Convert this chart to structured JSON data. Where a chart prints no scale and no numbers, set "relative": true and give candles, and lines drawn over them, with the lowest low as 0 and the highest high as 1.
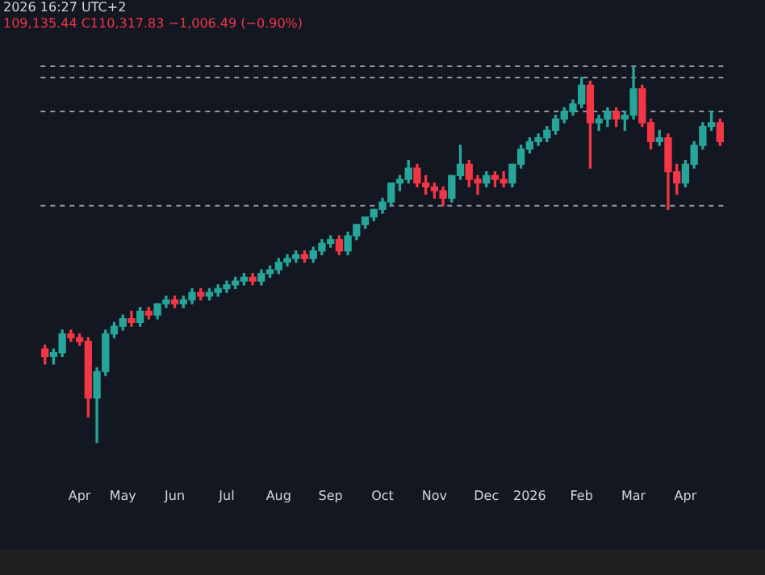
{
  "chart_data": {
    "type": "candlestick",
    "relative": true,
    "legend": false,
    "annotations": [
      "2026 16:27 UTC+2",
      "109,135.44 C110,317.83 −1,006.49 (−0.90%)"
    ],
    "categories": [
      null,
      null,
      null,
      null,
      "Apr",
      null,
      null,
      null,
      null,
      "May",
      null,
      null,
      null,
      null,
      null,
      "Jun",
      null,
      null,
      null,
      null,
      null,
      "Jul",
      null,
      null,
      null,
      null,
      null,
      "Aug",
      null,
      null,
      null,
      null,
      null,
      "Sep",
      null,
      null,
      null,
      null,
      null,
      "Oct",
      null,
      null,
      null,
      null,
      null,
      "Nov",
      null,
      null,
      null,
      null,
      null,
      "Dec",
      null,
      null,
      null,
      null,
      "2026",
      null,
      null,
      null,
      null,
      null,
      "Feb",
      null,
      null,
      null,
      null,
      null,
      "Mar",
      null,
      null,
      null,
      null,
      null,
      "Apr",
      null,
      null,
      null,
      null
    ],
    "ref_lines": [
      {
        "axis": "y",
        "value": 1.0,
        "color": "#9598a1",
        "line_style": "dashed"
      },
      {
        "axis": "y",
        "value": 0.97,
        "color": "#9598a1",
        "line_style": "dashed"
      },
      {
        "axis": "y",
        "value": 0.88,
        "color": "#9598a1",
        "line_style": "dashed"
      },
      {
        "axis": "y",
        "value": 0.63,
        "color": "#9598a1",
        "line_style": "dashed"
      }
    ],
    "series": [
      {
        "ohlc": [
          [
            0.25,
            0.26,
            0.21,
            0.23
          ],
          [
            0.23,
            0.25,
            0.21,
            0.24
          ],
          [
            0.24,
            0.3,
            0.23,
            0.29
          ],
          [
            0.29,
            0.3,
            0.27,
            0.28
          ],
          [
            0.28,
            0.29,
            0.26,
            0.27
          ],
          [
            0.27,
            0.28,
            0.07,
            0.12
          ],
          [
            0.12,
            0.2,
            0,
            0.19
          ],
          [
            0.19,
            0.3,
            0.18,
            0.29
          ],
          [
            0.29,
            0.32,
            0.28,
            0.31
          ],
          [
            0.31,
            0.34,
            0.3,
            0.33
          ],
          [
            0.33,
            0.35,
            0.31,
            0.32
          ],
          [
            0.32,
            0.36,
            0.31,
            0.35
          ],
          [
            0.35,
            0.36,
            0.33,
            0.34
          ],
          [
            0.34,
            0.37,
            0.33,
            0.37
          ],
          [
            0.37,
            0.39,
            0.36,
            0.38
          ],
          [
            0.38,
            0.39,
            0.36,
            0.37
          ],
          [
            0.37,
            0.39,
            0.36,
            0.38
          ],
          [
            0.38,
            0.41,
            0.37,
            0.4
          ],
          [
            0.4,
            0.41,
            0.38,
            0.39
          ],
          [
            0.39,
            0.41,
            0.38,
            0.4
          ],
          [
            0.4,
            0.42,
            0.39,
            0.41
          ],
          [
            0.41,
            0.43,
            0.4,
            0.42
          ],
          [
            0.42,
            0.44,
            0.41,
            0.43
          ],
          [
            0.43,
            0.45,
            0.42,
            0.44
          ],
          [
            0.44,
            0.45,
            0.42,
            0.43
          ],
          [
            0.43,
            0.46,
            0.42,
            0.45
          ],
          [
            0.45,
            0.47,
            0.44,
            0.46
          ],
          [
            0.46,
            0.49,
            0.45,
            0.48
          ],
          [
            0.48,
            0.5,
            0.47,
            0.49
          ],
          [
            0.49,
            0.51,
            0.48,
            0.5
          ],
          [
            0.5,
            0.51,
            0.48,
            0.49
          ],
          [
            0.49,
            0.52,
            0.48,
            0.51
          ],
          [
            0.51,
            0.54,
            0.5,
            0.53
          ],
          [
            0.53,
            0.55,
            0.52,
            0.54
          ],
          [
            0.54,
            0.55,
            0.5,
            0.51
          ],
          [
            0.51,
            0.56,
            0.5,
            0.55
          ],
          [
            0.55,
            0.58,
            0.54,
            0.58
          ],
          [
            0.58,
            0.6,
            0.57,
            0.6
          ],
          [
            0.6,
            0.62,
            0.59,
            0.62
          ],
          [
            0.62,
            0.65,
            0.61,
            0.64
          ],
          [
            0.64,
            0.69,
            0.63,
            0.69
          ],
          [
            0.69,
            0.71,
            0.67,
            0.7
          ],
          [
            0.7,
            0.75,
            0.69,
            0.73
          ],
          [
            0.73,
            0.74,
            0.68,
            0.69
          ],
          [
            0.69,
            0.71,
            0.66,
            0.68
          ],
          [
            0.68,
            0.69,
            0.65,
            0.67
          ],
          [
            0.67,
            0.68,
            0.63,
            0.65
          ],
          [
            0.65,
            0.71,
            0.64,
            0.71
          ],
          [
            0.71,
            0.79,
            0.7,
            0.74
          ],
          [
            0.74,
            0.75,
            0.68,
            0.7
          ],
          [
            0.7,
            0.71,
            0.66,
            0.69
          ],
          [
            0.69,
            0.72,
            0.68,
            0.71
          ],
          [
            0.71,
            0.72,
            0.68,
            0.7
          ],
          [
            0.7,
            0.72,
            0.68,
            0.69
          ],
          [
            0.69,
            0.74,
            0.68,
            0.74
          ],
          [
            0.74,
            0.79,
            0.73,
            0.78
          ],
          [
            0.78,
            0.81,
            0.77,
            0.8
          ],
          [
            0.8,
            0.82,
            0.79,
            0.81
          ],
          [
            0.81,
            0.84,
            0.8,
            0.83
          ],
          [
            0.83,
            0.87,
            0.82,
            0.86
          ],
          [
            0.86,
            0.89,
            0.85,
            0.88
          ],
          [
            0.88,
            0.91,
            0.87,
            0.9
          ],
          [
            0.9,
            0.97,
            0.89,
            0.95
          ],
          [
            0.95,
            0.96,
            0.73,
            0.85
          ],
          [
            0.85,
            0.87,
            0.83,
            0.86
          ],
          [
            0.86,
            0.89,
            0.84,
            0.88
          ],
          [
            0.88,
            0.89,
            0.84,
            0.86
          ],
          [
            0.86,
            0.88,
            0.83,
            0.87
          ],
          [
            0.87,
            1.0,
            0.86,
            0.94
          ],
          [
            0.94,
            0.95,
            0.84,
            0.85
          ],
          [
            0.85,
            0.86,
            0.78,
            0.8
          ],
          [
            0.8,
            0.83,
            0.79,
            0.81
          ],
          [
            0.81,
            0.82,
            0.62,
            0.72
          ],
          [
            0.72,
            0.74,
            0.66,
            0.69
          ],
          [
            0.69,
            0.75,
            0.68,
            0.74
          ],
          [
            0.74,
            0.8,
            0.73,
            0.79
          ],
          [
            0.79,
            0.85,
            0.78,
            0.84
          ],
          [
            0.84,
            0.88,
            0.83,
            0.85
          ],
          [
            0.85,
            0.86,
            0.79,
            0.8
          ]
        ],
        "colors": [
          "#f23645",
          "#26a69a",
          "#26a69a",
          "#f23645",
          "#f23645",
          "#f23645",
          "#26a69a",
          "#26a69a",
          "#26a69a",
          "#26a69a",
          "#f23645",
          "#26a69a",
          "#f23645",
          "#26a69a",
          "#26a69a",
          "#f23645",
          "#26a69a",
          "#26a69a",
          "#f23645",
          "#26a69a",
          "#26a69a",
          "#26a69a",
          "#26a69a",
          "#26a69a",
          "#f23645",
          "#26a69a",
          "#26a69a",
          "#26a69a",
          "#26a69a",
          "#26a69a",
          "#f23645",
          "#26a69a",
          "#26a69a",
          "#26a69a",
          "#f23645",
          "#26a69a",
          "#26a69a",
          "#26a69a",
          "#26a69a",
          "#26a69a",
          "#26a69a",
          "#26a69a",
          "#26a69a",
          "#f23645",
          "#f23645",
          "#f23645",
          "#f23645",
          "#26a69a",
          "#26a69a",
          "#f23645",
          "#f23645",
          "#26a69a",
          "#f23645",
          "#f23645",
          "#26a69a",
          "#26a69a",
          "#26a69a",
          "#26a69a",
          "#26a69a",
          "#26a69a",
          "#26a69a",
          "#26a69a",
          "#26a69a",
          "#f23645",
          "#26a69a",
          "#26a69a",
          "#f23645",
          "#26a69a",
          "#26a69a",
          "#f23645",
          "#f23645",
          "#26a69a",
          "#f23645",
          "#f23645",
          "#26a69a",
          "#26a69a",
          "#26a69a",
          "#26a69a",
          "#f23645"
        ]
      }
    ]
  }
}
